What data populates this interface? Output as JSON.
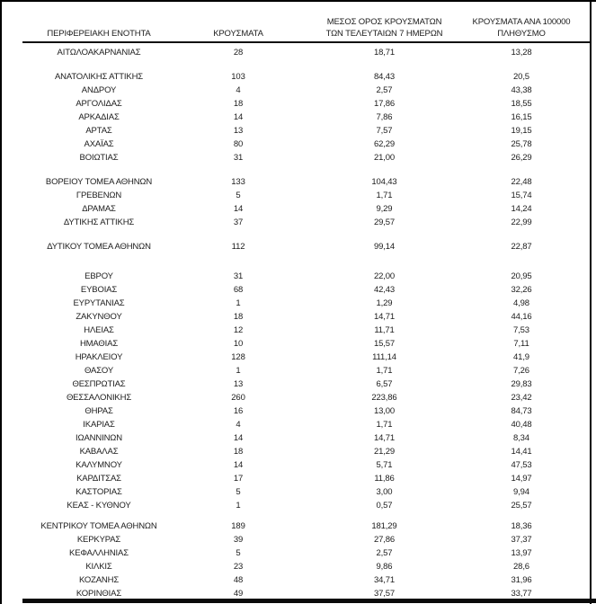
{
  "table": {
    "headers": {
      "region": "ΠΕΡΙΦΕΡΕΙΑΚΗ ΕΝΟΤΗΤΑ",
      "cases": "ΚΡΟΥΣΜΑΤΑ",
      "avg7_line1": "ΜΕΣΟΣ ΟΡΟΣ ΚΡΟΥΣΜΑΤΩΝ",
      "avg7_line2": "ΤΩΝ ΤΕΛΕΥΤΑΙΩΝ 7 ΗΜΕΡΩΝ",
      "per100k_line1": "ΚΡΟΥΣΜΑΤΑ ΑΝΑ 100000",
      "per100k_line2": "ΠΛΗΘΥΣΜΟ"
    },
    "sections": [
      {
        "rows": [
          [
            "ΑΙΤΩΛΟΑΚΑΡΝΑΝΙΑΣ",
            "28",
            "18,71",
            "13,28"
          ]
        ]
      },
      {
        "rows": [
          [
            "ΑΝΑΤΟΛΙΚΗΣ ΑΤΤΙΚΗΣ",
            "103",
            "84,43",
            "20,5"
          ],
          [
            "ΑΝΔΡΟΥ",
            "4",
            "2,57",
            "43,38"
          ],
          [
            "ΑΡΓΟΛΙΔΑΣ",
            "18",
            "17,86",
            "18,55"
          ],
          [
            "ΑΡΚΑΔΙΑΣ",
            "14",
            "7,86",
            "16,15"
          ],
          [
            "ΑΡΤΑΣ",
            "13",
            "7,57",
            "19,15"
          ],
          [
            "ΑΧΑΪΑΣ",
            "80",
            "62,29",
            "25,78"
          ],
          [
            "ΒΟΙΩΤΙΑΣ",
            "31",
            "21,00",
            "26,29"
          ]
        ]
      },
      {
        "rows": [
          [
            "ΒΟΡΕΙΟΥ ΤΟΜΕΑ ΑΘΗΝΩΝ",
            "133",
            "104,43",
            "22,48"
          ],
          [
            "ΓΡΕΒΕΝΩΝ",
            "5",
            "1,71",
            "15,74"
          ],
          [
            "ΔΡΑΜΑΣ",
            "14",
            "9,29",
            "14,24"
          ],
          [
            "ΔΥΤΙΚΗΣ ΑΤΤΙΚΗΣ",
            "37",
            "29,57",
            "22,99"
          ]
        ]
      },
      {
        "rows": [
          [
            "ΔΥΤΙΚΟΥ ΤΟΜΕΑ ΑΘΗΝΩΝ",
            "112",
            "99,14",
            "22,87"
          ]
        ]
      },
      {
        "rows": [
          [
            "ΕΒΡΟΥ",
            "31",
            "22,00",
            "20,95"
          ],
          [
            "ΕΥΒΟΙΑΣ",
            "68",
            "42,43",
            "32,26"
          ],
          [
            "ΕΥΡΥΤΑΝΙΑΣ",
            "1",
            "1,29",
            "4,98"
          ],
          [
            "ΖΑΚΥΝΘΟΥ",
            "18",
            "14,71",
            "44,16"
          ],
          [
            "ΗΛΕΙΑΣ",
            "12",
            "11,71",
            "7,53"
          ],
          [
            "ΗΜΑΘΙΑΣ",
            "10",
            "15,57",
            "7,11"
          ],
          [
            "ΗΡΑΚΛΕΙΟΥ",
            "128",
            "111,14",
            "41,9"
          ],
          [
            "ΘΑΣΟΥ",
            "1",
            "1,71",
            "7,26"
          ],
          [
            "ΘΕΣΠΡΩΤΙΑΣ",
            "13",
            "6,57",
            "29,83"
          ],
          [
            "ΘΕΣΣΑΛΟΝΙΚΗΣ",
            "260",
            "223,86",
            "23,42"
          ],
          [
            "ΘΗΡΑΣ",
            "16",
            "13,00",
            "84,73"
          ],
          [
            "ΙΚΑΡΙΑΣ",
            "4",
            "1,71",
            "40,48"
          ],
          [
            "ΙΩΑΝΝΙΝΩΝ",
            "14",
            "14,71",
            "8,34"
          ],
          [
            "ΚΑΒΑΛΑΣ",
            "18",
            "21,29",
            "14,41"
          ],
          [
            "ΚΑΛΥΜΝΟΥ",
            "14",
            "5,71",
            "47,53"
          ],
          [
            "ΚΑΡΔΙΤΣΑΣ",
            "17",
            "11,86",
            "14,97"
          ],
          [
            "ΚΑΣΤΟΡΙΑΣ",
            "5",
            "3,00",
            "9,94"
          ],
          [
            "ΚΕΑΣ - ΚΥΘΝΟΥ",
            "1",
            "0,57",
            "25,57"
          ]
        ]
      },
      {
        "rows": [
          [
            "ΚΕΝΤΡΙΚΟΥ ΤΟΜΕΑ ΑΘΗΝΩΝ",
            "189",
            "181,29",
            "18,36"
          ],
          [
            "ΚΕΡΚΥΡΑΣ",
            "39",
            "27,86",
            "37,37"
          ],
          [
            "ΚΕΦΑΛΛΗΝΙΑΣ",
            "5",
            "2,57",
            "13,97"
          ],
          [
            "ΚΙΛΚΙΣ",
            "23",
            "9,86",
            "28,6"
          ],
          [
            "ΚΟΖΑΝΗΣ",
            "48",
            "34,71",
            "31,96"
          ],
          [
            "ΚΟΡΙΝΘΙΑΣ",
            "49",
            "37,57",
            "33,77"
          ]
        ]
      }
    ]
  }
}
